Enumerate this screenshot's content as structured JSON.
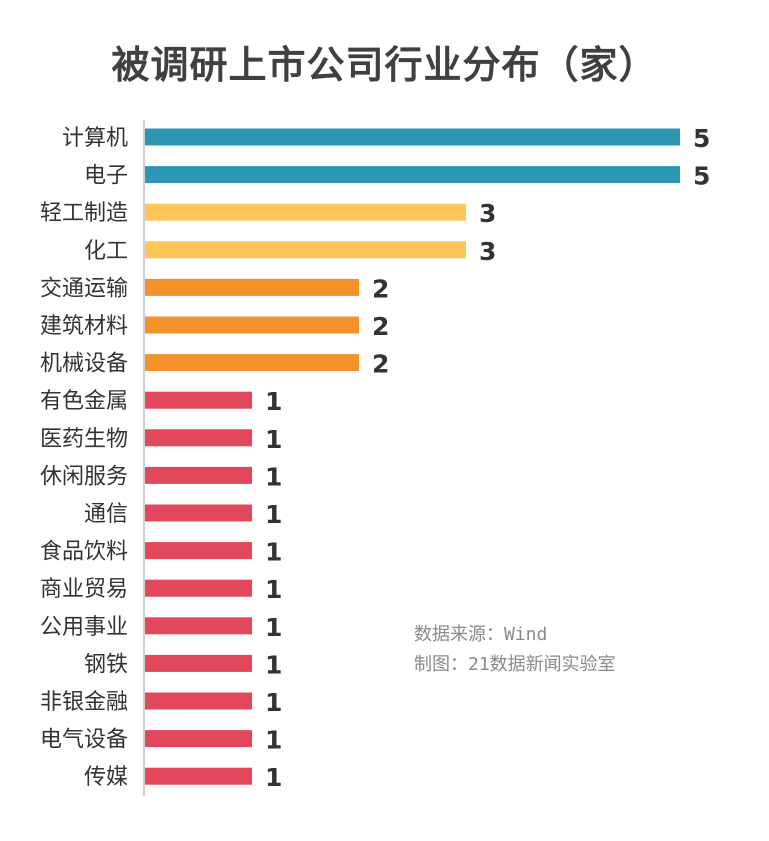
{
  "title": "被调研上市公司行业分布（家）",
  "source_line": "数据来源：Wind",
  "maker_line": "制图：21数据新闻实验室",
  "colors": {
    "five": "#2e97b5",
    "three": "#fdc658",
    "two": "#f3922b",
    "one": "#e3475b"
  },
  "chart_data": {
    "type": "bar",
    "orientation": "horizontal",
    "title": "被调研上市公司行业分布（家）",
    "categories": [
      "计算机",
      "电子",
      "轻工制造",
      "化工",
      "交通运输",
      "建筑材料",
      "机械设备",
      "有色金属",
      "医药生物",
      "休闲服务",
      "通信",
      "食品饮料",
      "商业贸易",
      "公用事业",
      "钢铁",
      "非银金融",
      "电气设备",
      "传媒"
    ],
    "values": [
      5,
      5,
      3,
      3,
      2,
      2,
      2,
      1,
      1,
      1,
      1,
      1,
      1,
      1,
      1,
      1,
      1,
      1
    ],
    "xlim": [
      0,
      5
    ],
    "grid": false,
    "legend": "none"
  }
}
